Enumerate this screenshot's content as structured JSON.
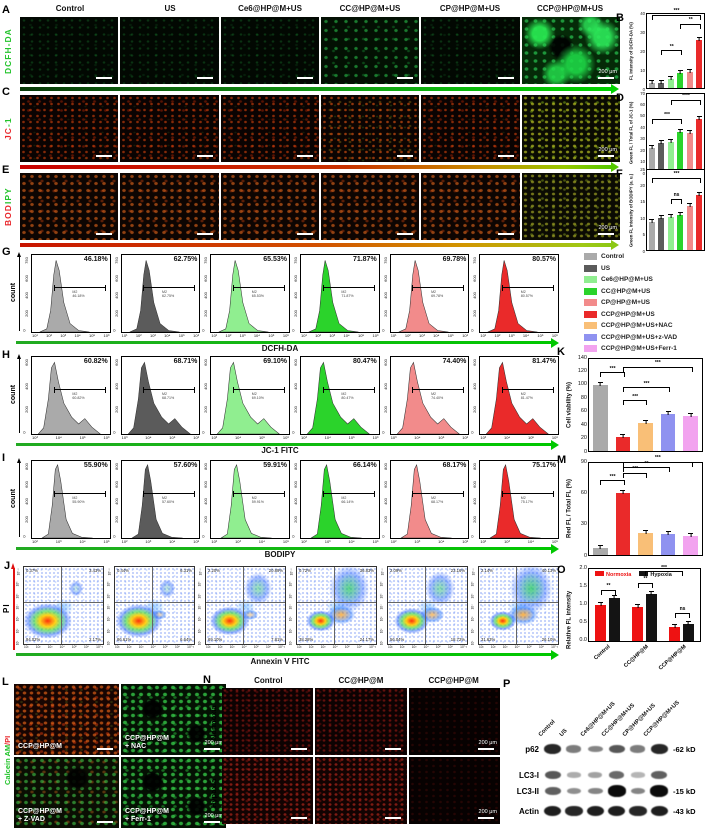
{
  "letters": {
    "a": "A",
    "b": "B",
    "c": "C",
    "d": "D",
    "e": "E",
    "f": "F",
    "g": "G",
    "h": "H",
    "i": "I",
    "j": "J",
    "k": "K",
    "l": "L",
    "m": "M",
    "n": "N",
    "o": "O",
    "p": "P"
  },
  "conditions": [
    "Control",
    "US",
    "Ce6@HP@M+US",
    "CC@HP@M+US",
    "CP@HP@M+US",
    "CCP@HP@M+US"
  ],
  "condition_colors": [
    "#aaaaaa",
    "#5b5b5b",
    "#90ee90",
    "#2bd32b",
    "#f28b8b",
    "#ea2a2a"
  ],
  "row_labels": {
    "a": "DCFH-DA",
    "c_red": "JC",
    "c_green": "-1",
    "e_red": "BOD",
    "e_green": "IPY",
    "l_green": "Calcein AM",
    "l_red": "/PI"
  },
  "micro": {
    "scale_label": "200 μm"
  },
  "legend": {
    "items": [
      {
        "label": "Control",
        "color": "#aaaaaa"
      },
      {
        "label": "US",
        "color": "#5b5b5b"
      },
      {
        "label": "Ce6@HP@M+US",
        "color": "#90ee90"
      },
      {
        "label": "CC@HP@M+US",
        "color": "#2bd32b"
      },
      {
        "label": "CP@HP@M+US",
        "color": "#f28b8b"
      },
      {
        "label": "CCP@HP@M+US",
        "color": "#ea2a2a"
      },
      {
        "label": "CCP@HP@M+US+NAC",
        "color": "#f9bf77"
      },
      {
        "label": "CCP@HP@M+US+z-VAD",
        "color": "#8f92f0"
      },
      {
        "label": "CCP@HP@M+US+Ferr-1",
        "color": "#f2a3ef"
      }
    ]
  },
  "chart_data": {
    "b": {
      "type": "bar",
      "ylabel": "FL intensity of DCFH-DA (%)",
      "ylim": 40,
      "yticks": [
        0,
        10,
        20,
        30,
        40
      ],
      "categories": [
        "Control",
        "US",
        "Ce6@HP@M+US",
        "CC@HP@M+US",
        "CP@HP@M+US",
        "CCP@HP@M+US"
      ],
      "values": [
        2.5,
        2.5,
        5,
        8,
        8.5,
        26
      ],
      "colors": [
        "#aaaaaa",
        "#5b5b5b",
        "#90ee90",
        "#2bd32b",
        "#f28b8b",
        "#ea2a2a"
      ],
      "sig": [
        {
          "from": 0,
          "to": 5,
          "h": 0.92,
          "label": "***"
        },
        {
          "from": 3,
          "to": 5,
          "h": 0.8,
          "label": "**"
        },
        {
          "from": 1,
          "to": 3,
          "h": 0.44,
          "label": "**"
        }
      ]
    },
    "d": {
      "type": "bar",
      "ylabel": "Green FL / Total FL of JC-1 (%)",
      "ylim": 70,
      "yticks": [
        0,
        10,
        20,
        30,
        40,
        50,
        60,
        70
      ],
      "categories": [
        "Control",
        "US",
        "Ce6@HP@M+US",
        "CC@HP@M+US",
        "CP@HP@M+US",
        "CCP@HP@M+US"
      ],
      "values": [
        22,
        26,
        27,
        36,
        35,
        48
      ],
      "colors": [
        "#aaaaaa",
        "#5b5b5b",
        "#90ee90",
        "#2bd32b",
        "#f28b8b",
        "#ea2a2a"
      ],
      "sig": [
        {
          "from": 0,
          "to": 3,
          "h": 0.62,
          "label": "***"
        },
        {
          "from": 2,
          "to": 5,
          "h": 0.86,
          "label": "****"
        }
      ]
    },
    "f": {
      "type": "bar",
      "ylabel": "Green FL intensity of BODIPY (a. u.)",
      "ylim": 25,
      "yticks": [
        0,
        5,
        10,
        15,
        20,
        25
      ],
      "categories": [
        "Control",
        "US",
        "Ce6@HP@M+US",
        "CC@HP@M+US",
        "CP@HP@M+US",
        "CCP@HP@M+US"
      ],
      "values": [
        8.7,
        10,
        10.3,
        10.8,
        13.7,
        17.3
      ],
      "colors": [
        "#aaaaaa",
        "#5b5b5b",
        "#90ee90",
        "#2bd32b",
        "#f28b8b",
        "#ea2a2a"
      ],
      "sig": [
        {
          "from": 2,
          "to": 3,
          "h": 0.58,
          "label": "ns"
        },
        {
          "from": 0,
          "to": 5,
          "h": 0.84,
          "label": "***"
        }
      ]
    },
    "k": {
      "type": "bar",
      "ylabel": "Cell viability (%)",
      "ylim": 140,
      "yticks": [
        0,
        20,
        40,
        60,
        80,
        100,
        120,
        140
      ],
      "categories": [
        "Control",
        "CCP@HP@M+US",
        "CCP@HP@M+US+NAC",
        "CCP@HP@M+US+z-VAD",
        "CCP@HP@M+US+Ferr-1"
      ],
      "values": [
        100,
        22,
        43,
        57,
        54
      ],
      "colors": [
        "#aaaaaa",
        "#ea2a2a",
        "#f9bf77",
        "#8f92f0",
        "#f2a3ef"
      ],
      "sig": [
        {
          "from": 0,
          "to": 1,
          "h": 0.8,
          "label": "***"
        },
        {
          "from": 1,
          "to": 2,
          "h": 0.5,
          "label": "***"
        },
        {
          "from": 1,
          "to": 3,
          "h": 0.64,
          "label": "***"
        },
        {
          "from": 1,
          "to": 4,
          "h": 0.86,
          "label": "***"
        }
      ]
    },
    "m": {
      "type": "bar",
      "ylabel": "Red FL / Total FL (%)",
      "ylim": 90,
      "yticks": [
        0,
        30,
        60,
        90
      ],
      "categories": [
        "Control",
        "CCP@HP@M+US",
        "CCP@HP@M+US+NAC",
        "CCP@HP@M+US+z-VAD",
        "CCP@HP@M+US+Ferr-1"
      ],
      "values": [
        7,
        61,
        22,
        21,
        19
      ],
      "colors": [
        "#aaaaaa",
        "#ea2a2a",
        "#f9bf77",
        "#8f92f0",
        "#f2a3ef"
      ],
      "sig": [
        {
          "from": 0,
          "to": 1,
          "h": 0.76,
          "label": "***"
        },
        {
          "from": 1,
          "to": 2,
          "h": 0.84,
          "label": "***"
        },
        {
          "from": 1,
          "to": 3,
          "h": 0.9,
          "label": "**"
        },
        {
          "from": 1,
          "to": 4,
          "h": 0.96,
          "label": "***"
        }
      ]
    },
    "o": {
      "type": "bar",
      "ylabel": "Relative FL intensity",
      "ylim": 2.0,
      "yticks": [
        "0.0",
        "0.5",
        "1.0",
        "1.5",
        "2.0"
      ],
      "categories": [
        "Control",
        "CC@HP@M",
        "CCP@HP@M"
      ],
      "series": [
        {
          "name": "Normoxia",
          "color": "#ee1212",
          "values": [
            1.0,
            0.95,
            0.4
          ]
        },
        {
          "name": "Hypoxia",
          "color": "#141414",
          "values": [
            1.2,
            1.3,
            0.48
          ]
        }
      ],
      "sig": [
        {
          "type": "pair",
          "cat": 0,
          "h": 0.64,
          "label": "**"
        },
        {
          "type": "pair",
          "cat": 1,
          "h": 0.74,
          "label": "**"
        },
        {
          "type": "pair",
          "cat": 2,
          "h": 0.32,
          "label": "ns"
        },
        {
          "type": "span",
          "from": 1,
          "to": 2,
          "h": 0.9,
          "label": "***"
        }
      ]
    }
  },
  "flow": {
    "ylabel": "count",
    "gate": "M2",
    "g": {
      "xlabel": "DCFH-DA",
      "percents": [
        "46.18%",
        "62.75%",
        "65.53%",
        "71.87%",
        "69.78%",
        "80.57%"
      ],
      "yticks": [
        "0",
        "200",
        "400",
        "600",
        "750"
      ],
      "xticks": [
        "10¹",
        "10²",
        "10³",
        "10⁴",
        "10⁵",
        "10⁶"
      ]
    },
    "h": {
      "xlabel": "JC-1 FITC",
      "percents": [
        "60.82%",
        "68.71%",
        "69.10%",
        "80.47%",
        "74.40%",
        "81.47%"
      ],
      "yticks": [
        "0",
        "200",
        "400",
        "600"
      ],
      "xticks": [
        "10³",
        "10⁴",
        "10⁵",
        "10⁶"
      ]
    },
    "i": {
      "xlabel": "BODIPY",
      "percents": [
        "55.90%",
        "57.60%",
        "59.91%",
        "66.14%",
        "68.17%",
        "75.17%"
      ],
      "yticks": [
        "0",
        "200",
        "400",
        "600",
        "800"
      ],
      "xticks": [
        "10²",
        "10³",
        "10⁴",
        "10⁵"
      ]
    }
  },
  "scatter": {
    "ylabel": "PI",
    "xlabel": "Annexin V FITC",
    "ticks": [
      "10¹",
      "10²",
      "10³",
      "10⁴",
      "10⁵",
      "10⁶",
      "10⁷·²"
    ],
    "panels": [
      {
        "ul": "0.37%",
        "ur": "3.43%",
        "ll": "94.02%",
        "lr": "2.17%"
      },
      {
        "ul": "0.44%",
        "ur": "6.31%",
        "ll": "86.61%",
        "lr": "6.64%"
      },
      {
        "ul": "2.20%",
        "ur": "20.89%",
        "ll": "69.10%",
        "lr": "7.81%"
      },
      {
        "ul": "0.72%",
        "ur": "36.83%",
        "ll": "38.28%",
        "lr": "24.17%"
      },
      {
        "ul": "2.09%",
        "ur": "23.16%",
        "ll": "56.04%",
        "lr": "18.72%"
      },
      {
        "ul": "2.14%",
        "ur": "40.13%",
        "ll": "31.63%",
        "lr": "26.10%"
      }
    ]
  },
  "panelL": {
    "tiles": [
      {
        "l1": "CCP@HP@M",
        "l2": ""
      },
      {
        "l1": "CCP@HP@M",
        "l2": "+ NAC"
      },
      {
        "l1": "CCP@HP@M",
        "l2": "+ Z-VAD"
      },
      {
        "l1": "CCP@HP@M",
        "l2": "+ Ferr-1"
      }
    ],
    "scale": "200 μm"
  },
  "panelN": {
    "columns": [
      "Control",
      "CC@HP@M",
      "CCP@HP@M"
    ],
    "rows": [
      "Normoxia",
      "Hypoxia"
    ],
    "scale": "200 μm"
  },
  "blot": {
    "lanes": [
      "Control",
      "US",
      "Ce6@HP@M+US",
      "CC@HP@M+US",
      "CP@HP@M+US",
      "CCP@HP@M+US"
    ],
    "rows": [
      {
        "name": "p62",
        "kd": "-62 kD",
        "bands": [
          0.85,
          0.4,
          0.35,
          0.6,
          0.4,
          0.85
        ]
      },
      {
        "name": "LC3-I",
        "kd": "",
        "bands": [
          0.6,
          0.15,
          0.2,
          0.5,
          0.1,
          0.55
        ]
      },
      {
        "name": "LC3-II",
        "kd": "-15 kD",
        "bands": [
          0.55,
          0.3,
          0.35,
          1.0,
          0.35,
          1.0
        ]
      },
      {
        "name": "Actin",
        "kd": "-43 kD",
        "bands": [
          0.9,
          0.85,
          0.9,
          0.9,
          0.85,
          0.9
        ]
      }
    ]
  }
}
